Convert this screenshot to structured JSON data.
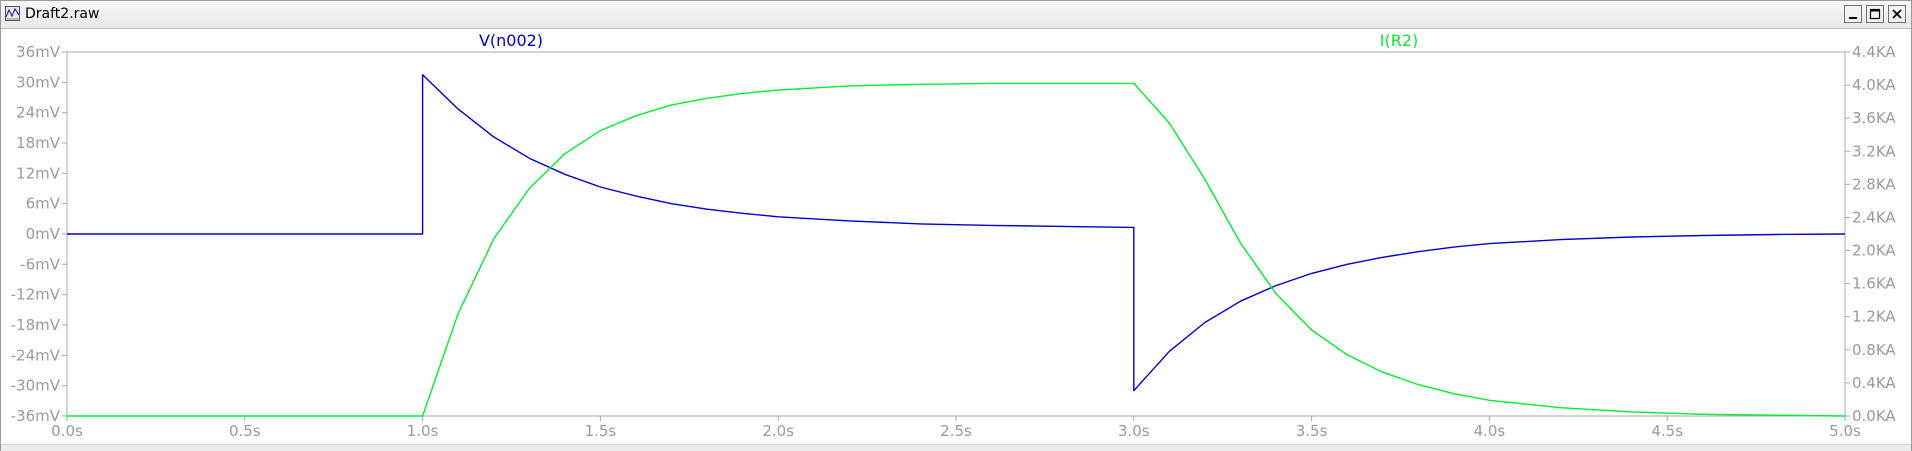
{
  "window": {
    "title": "Draft2.raw",
    "controls": [
      "minimize",
      "maximize",
      "close"
    ]
  },
  "chart_data": {
    "type": "line",
    "x_ticks": [
      "0.0s",
      "0.5s",
      "1.0s",
      "1.5s",
      "2.0s",
      "2.5s",
      "3.0s",
      "3.5s",
      "4.0s",
      "4.5s",
      "5.0s"
    ],
    "xlim": [
      0,
      5
    ],
    "left_ticks": [
      "36mV",
      "30mV",
      "24mV",
      "18mV",
      "12mV",
      "6mV",
      "0mV",
      "-6mV",
      "-12mV",
      "-18mV",
      "-24mV",
      "-30mV",
      "-36mV"
    ],
    "left_ylim": [
      -36,
      36
    ],
    "right_ticks": [
      "4.4KA",
      "4.0KA",
      "3.6KA",
      "3.2KA",
      "2.8KA",
      "2.4KA",
      "2.0KA",
      "1.6KA",
      "1.2KA",
      "0.8KA",
      "0.4KA",
      "0.0KA"
    ],
    "right_ylim": [
      0,
      4.4
    ],
    "grid": false,
    "series": [
      {
        "name": "V(n002)",
        "axis": "left",
        "color": "#0000d0",
        "points": [
          [
            0,
            0
          ],
          [
            1.0,
            0
          ],
          [
            1.0,
            31.5
          ],
          [
            1.1,
            24.7
          ],
          [
            1.2,
            19.2
          ],
          [
            1.3,
            15.0
          ],
          [
            1.4,
            11.8
          ],
          [
            1.5,
            9.3
          ],
          [
            1.6,
            7.5
          ],
          [
            1.7,
            6.0
          ],
          [
            1.8,
            4.9
          ],
          [
            1.9,
            4.1
          ],
          [
            2.0,
            3.4
          ],
          [
            2.2,
            2.6
          ],
          [
            2.4,
            2.0
          ],
          [
            2.6,
            1.7
          ],
          [
            2.8,
            1.5
          ],
          [
            3.0,
            1.3
          ],
          [
            3.0,
            -31.0
          ],
          [
            3.1,
            -23.2
          ],
          [
            3.2,
            -17.5
          ],
          [
            3.3,
            -13.3
          ],
          [
            3.4,
            -10.2
          ],
          [
            3.5,
            -7.8
          ],
          [
            3.6,
            -6.0
          ],
          [
            3.7,
            -4.6
          ],
          [
            3.8,
            -3.5
          ],
          [
            3.9,
            -2.6
          ],
          [
            4.0,
            -1.9
          ],
          [
            4.2,
            -1.1
          ],
          [
            4.4,
            -0.6
          ],
          [
            4.6,
            -0.3
          ],
          [
            4.8,
            -0.1
          ],
          [
            5.0,
            0
          ]
        ]
      },
      {
        "name": "I(R2)",
        "axis": "right",
        "color": "#00ee33",
        "points": [
          [
            0,
            0
          ],
          [
            1.0,
            0
          ],
          [
            1.1,
            1.24
          ],
          [
            1.2,
            2.14
          ],
          [
            1.3,
            2.75
          ],
          [
            1.4,
            3.17
          ],
          [
            1.5,
            3.45
          ],
          [
            1.6,
            3.63
          ],
          [
            1.7,
            3.76
          ],
          [
            1.8,
            3.84
          ],
          [
            1.9,
            3.9
          ],
          [
            2.0,
            3.94
          ],
          [
            2.2,
            3.99
          ],
          [
            2.4,
            4.01
          ],
          [
            2.6,
            4.02
          ],
          [
            2.8,
            4.02
          ],
          [
            3.0,
            4.02
          ],
          [
            3.1,
            3.54
          ],
          [
            3.2,
            2.86
          ],
          [
            3.3,
            2.09
          ],
          [
            3.4,
            1.48
          ],
          [
            3.5,
            1.04
          ],
          [
            3.6,
            0.74
          ],
          [
            3.7,
            0.53
          ],
          [
            3.8,
            0.38
          ],
          [
            3.9,
            0.27
          ],
          [
            4.0,
            0.19
          ],
          [
            4.2,
            0.1
          ],
          [
            4.4,
            0.05
          ],
          [
            4.6,
            0.02
          ],
          [
            4.8,
            0.01
          ],
          [
            5.0,
            0
          ]
        ]
      }
    ]
  }
}
